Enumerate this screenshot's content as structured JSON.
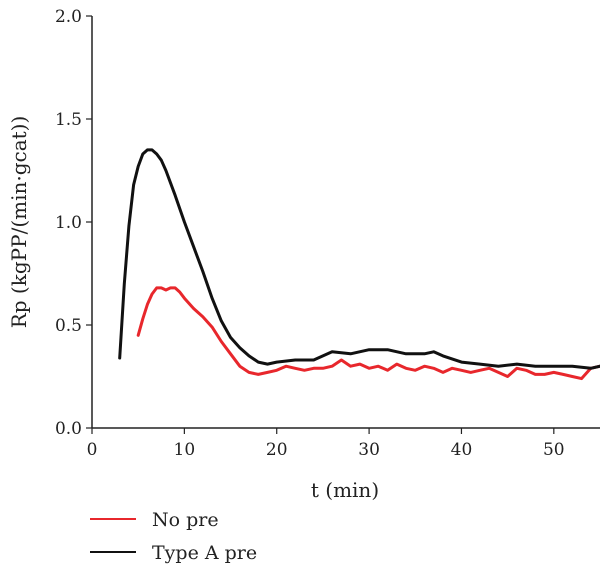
{
  "chart_data": {
    "type": "line",
    "xlabel": "t (min)",
    "ylabel": "Rp (kgPP/(min·gcat))",
    "xlim": [
      0,
      55
    ],
    "ylim": [
      0,
      2.0
    ],
    "xticks": [
      0,
      10,
      20,
      30,
      40,
      50
    ],
    "yticks": [
      0.0,
      0.5,
      1.0,
      1.5,
      2.0
    ],
    "ytick_labels": [
      "0.0",
      "0.5",
      "1.0",
      "1.5",
      "2.0"
    ],
    "grid": false,
    "legend_position": "bottom-left below plot",
    "series": [
      {
        "name": "No pre",
        "color": "#e8272c",
        "x": [
          5,
          5.5,
          6,
          6.5,
          7,
          7.5,
          8,
          8.5,
          9,
          9.5,
          10,
          11,
          12,
          13,
          14,
          15,
          16,
          17,
          18,
          19,
          20,
          21,
          22,
          23,
          24,
          25,
          26,
          27,
          28,
          29,
          30,
          31,
          32,
          33,
          34,
          35,
          36,
          37,
          38,
          39,
          40,
          41,
          42,
          43,
          44,
          45,
          46,
          47,
          48,
          49,
          50,
          51,
          52,
          53,
          54,
          55
        ],
        "y": [
          0.45,
          0.53,
          0.6,
          0.65,
          0.68,
          0.68,
          0.67,
          0.68,
          0.68,
          0.66,
          0.63,
          0.58,
          0.54,
          0.49,
          0.42,
          0.36,
          0.3,
          0.27,
          0.26,
          0.27,
          0.28,
          0.3,
          0.29,
          0.28,
          0.29,
          0.29,
          0.3,
          0.33,
          0.3,
          0.31,
          0.29,
          0.3,
          0.28,
          0.31,
          0.29,
          0.28,
          0.3,
          0.29,
          0.27,
          0.29,
          0.28,
          0.27,
          0.28,
          0.29,
          0.27,
          0.25,
          0.29,
          0.28,
          0.26,
          0.26,
          0.27,
          0.26,
          0.25,
          0.24,
          0.29,
          0.3
        ]
      },
      {
        "name": "Type A pre",
        "color": "#111111",
        "x": [
          3,
          3.5,
          4,
          4.5,
          5,
          5.5,
          6,
          6.5,
          7,
          7.5,
          8,
          9,
          10,
          11,
          12,
          13,
          14,
          15,
          16,
          17,
          18,
          19,
          20,
          22,
          24,
          26,
          28,
          30,
          32,
          34,
          36,
          37,
          38,
          40,
          42,
          44,
          46,
          48,
          50,
          52,
          54,
          55
        ],
        "y": [
          0.34,
          0.7,
          0.98,
          1.18,
          1.27,
          1.33,
          1.35,
          1.35,
          1.33,
          1.3,
          1.25,
          1.13,
          1.0,
          0.88,
          0.76,
          0.63,
          0.52,
          0.44,
          0.39,
          0.35,
          0.32,
          0.31,
          0.32,
          0.33,
          0.33,
          0.37,
          0.36,
          0.38,
          0.38,
          0.36,
          0.36,
          0.37,
          0.35,
          0.32,
          0.31,
          0.3,
          0.31,
          0.3,
          0.3,
          0.3,
          0.29,
          0.3
        ]
      }
    ]
  }
}
